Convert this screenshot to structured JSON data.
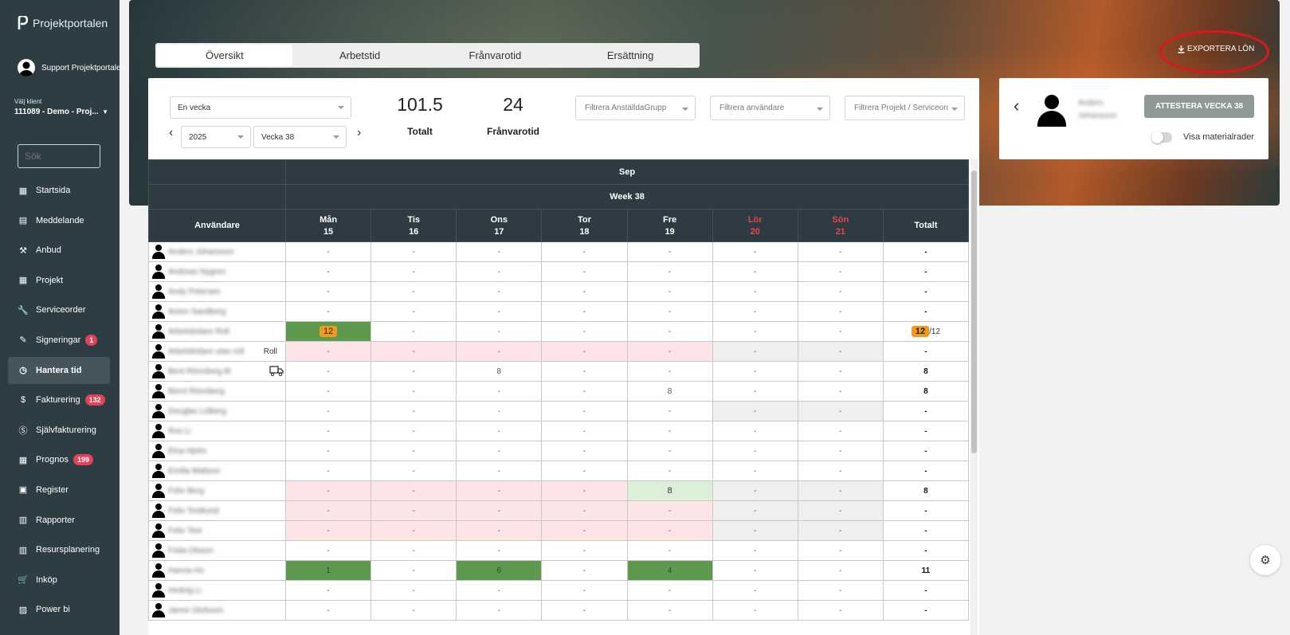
{
  "app": {
    "logo": "Projektportalen"
  },
  "user": {
    "name": "Support Projektportalen"
  },
  "client": {
    "label": "Välj klient",
    "value": "111089 - Demo - Proj..."
  },
  "search": {
    "placeholder": "Sök"
  },
  "sidebar": {
    "items": [
      {
        "label": "Startsida",
        "icon": "dashboard-icon"
      },
      {
        "label": "Meddelande",
        "icon": "message-icon"
      },
      {
        "label": "Anbud",
        "icon": "gavel-icon"
      },
      {
        "label": "Projekt",
        "icon": "grid-icon"
      },
      {
        "label": "Serviceorder",
        "icon": "wrench-icon"
      },
      {
        "label": "Signeringar",
        "icon": "signature-icon",
        "badge": "1"
      },
      {
        "label": "Hantera tid",
        "icon": "clock-icon",
        "active": true
      },
      {
        "label": "Fakturering",
        "icon": "dollar-icon",
        "badge": "132"
      },
      {
        "label": "Självfakturering",
        "icon": "dollar-circle-icon"
      },
      {
        "label": "Prognos",
        "icon": "grid-icon",
        "badge": "199"
      },
      {
        "label": "Register",
        "icon": "register-icon"
      },
      {
        "label": "Rapporter",
        "icon": "calendar-icon"
      },
      {
        "label": "Resursplanering",
        "icon": "calendar-icon"
      },
      {
        "label": "Inköp",
        "icon": "cart-icon"
      },
      {
        "label": "Power bi",
        "icon": "chart-icon"
      }
    ]
  },
  "tabs": [
    "Översikt",
    "Arbetstid",
    "Frånvarotid",
    "Ersättning"
  ],
  "export_label": "EXPORTERA LÖN",
  "period": {
    "mode": "En vecka",
    "year": "2025",
    "week": "Vecka 38"
  },
  "stats": {
    "total_value": "101.5",
    "total_label": "Totalt",
    "absence_value": "24",
    "absence_label": "Frånvarotid"
  },
  "filters": {
    "group": "Filtrera AnställdaGrupp",
    "user": "Filtrera användare",
    "project": "Filtrera Projekt / Serviceorder"
  },
  "right_panel": {
    "user_name": "Anders Johansson",
    "attest_label": "ATTESTERA VECKA 38",
    "toggle_label": "Visa materialrader"
  },
  "table": {
    "month": "Sep",
    "week": "Week 38",
    "user_col": "Användare",
    "total_col": "Totalt",
    "days": [
      {
        "name": "Mån",
        "num": "15"
      },
      {
        "name": "Tis",
        "num": "16"
      },
      {
        "name": "Ons",
        "num": "17"
      },
      {
        "name": "Tor",
        "num": "18"
      },
      {
        "name": "Fre",
        "num": "19"
      },
      {
        "name": "Lör",
        "num": "20",
        "weekend": true
      },
      {
        "name": "Sön",
        "num": "21",
        "weekend": true
      }
    ],
    "rows": [
      {
        "name": "Anders Johansson",
        "cells": [
          "-",
          "-",
          "-",
          "-",
          "-",
          "-",
          "-"
        ],
        "total": "-"
      },
      {
        "name": "Andreas Nygren",
        "cells": [
          "-",
          "-",
          "-",
          "-",
          "-",
          "-",
          "-"
        ],
        "total": "-"
      },
      {
        "name": "Andy Petersen",
        "cells": [
          "-",
          "-",
          "-",
          "-",
          "-",
          "-",
          "-"
        ],
        "total": "-"
      },
      {
        "name": "Anton Sandberg",
        "cells": [
          "-",
          "-",
          "-",
          "-",
          "-",
          "-",
          "-"
        ],
        "total": "-"
      },
      {
        "name": "Arbetsledare Roll",
        "cells": [
          "12",
          "-",
          "-",
          "-",
          "-",
          "-",
          "-"
        ],
        "styles": [
          "green",
          "",
          "",
          "",
          "",
          "",
          ""
        ],
        "total": "12",
        "total_suffix": "/12"
      },
      {
        "name": "Arbetsledare utan roll",
        "suffix": "Roll",
        "cells": [
          "-",
          "-",
          "-",
          "-",
          "-",
          "-",
          "-"
        ],
        "styles": [
          "pink",
          "pink",
          "pink",
          "pink",
          "pink",
          "grey",
          "grey"
        ],
        "total": "-"
      },
      {
        "name": "Bent Rönnberg M",
        "truck": true,
        "cells": [
          "-",
          "-",
          "8",
          "-",
          "-",
          "-",
          "-"
        ],
        "total": "8"
      },
      {
        "name": "Bernt Rönnberg",
        "cells": [
          "-",
          "-",
          "-",
          "-",
          "8",
          "-",
          "-"
        ],
        "total": "8"
      },
      {
        "name": "Douglas Lidberg",
        "cells": [
          "-",
          "-",
          "-",
          "-",
          "-",
          "-",
          "-"
        ],
        "styles": [
          "",
          "",
          "",
          "",
          "",
          "grey",
          "grey"
        ],
        "total": "-"
      },
      {
        "name": "Ros Li",
        "cells": [
          "-",
          "-",
          "-",
          "-",
          "-",
          "-",
          "-"
        ],
        "total": "-"
      },
      {
        "name": "Elna Hjelm",
        "cells": [
          "-",
          "-",
          "-",
          "-",
          "-",
          "-",
          "-"
        ],
        "total": "-"
      },
      {
        "name": "Emilia Mattson",
        "cells": [
          "-",
          "-",
          "-",
          "-",
          "-",
          "-",
          "-"
        ],
        "total": "-"
      },
      {
        "name": "Felix Berg",
        "cells": [
          "-",
          "-",
          "-",
          "-",
          "8",
          "-",
          "-"
        ],
        "styles": [
          "pink",
          "pink",
          "pink",
          "pink",
          "lgreen",
          "grey",
          "grey"
        ],
        "total": "8"
      },
      {
        "name": "Felix Testkund",
        "cells": [
          "-",
          "-",
          "-",
          "-",
          "-",
          "-",
          "-"
        ],
        "styles": [
          "pink",
          "pink",
          "pink",
          "pink",
          "pink",
          "grey",
          "grey"
        ],
        "total": "-"
      },
      {
        "name": "Felix Test",
        "cells": [
          "-",
          "-",
          "-",
          "-",
          "-",
          "-",
          "-"
        ],
        "styles": [
          "pink",
          "pink",
          "pink",
          "pink",
          "pink",
          "grey",
          "grey"
        ],
        "total": "-"
      },
      {
        "name": "Frida Olsson",
        "cells": [
          "-",
          "-",
          "-",
          "-",
          "-",
          "-",
          "-"
        ],
        "total": "-"
      },
      {
        "name": "Hanna Ho",
        "cells": [
          "1",
          "-",
          "6",
          "-",
          "4",
          "-",
          "-"
        ],
        "styles": [
          "green",
          "",
          "green",
          "",
          "green",
          "",
          ""
        ],
        "total": "11"
      },
      {
        "name": "Hedvig Li",
        "cells": [
          "-",
          "-",
          "-",
          "-",
          "-",
          "-",
          "-"
        ],
        "total": "-"
      },
      {
        "name": "Janne Olofsson",
        "cells": [
          "-",
          "-",
          "-",
          "-",
          "-",
          "-",
          "-"
        ],
        "total": "-"
      }
    ]
  }
}
